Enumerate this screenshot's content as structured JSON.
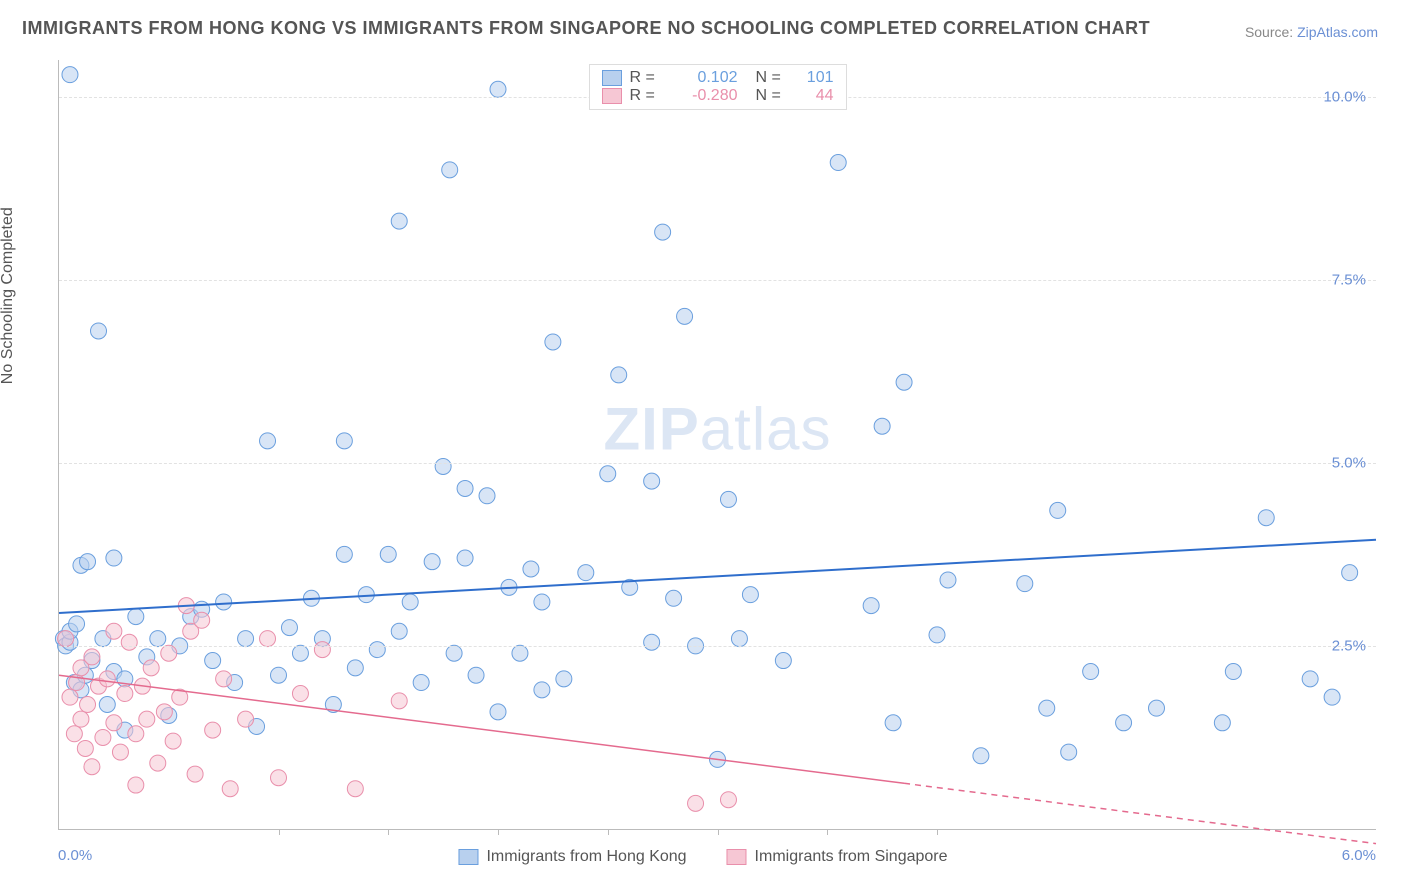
{
  "title": "IMMIGRANTS FROM HONG KONG VS IMMIGRANTS FROM SINGAPORE NO SCHOOLING COMPLETED CORRELATION CHART",
  "source_prefix": "Source: ",
  "source_name": "ZipAtlas.com",
  "ylabel": "No Schooling Completed",
  "watermark_bold": "ZIP",
  "watermark_rest": "atlas",
  "chart": {
    "type": "scatter",
    "xlim": [
      0.0,
      6.0
    ],
    "ylim": [
      0.0,
      10.5
    ],
    "x_ticks_labeled": [
      0.0,
      6.0
    ],
    "x_tick_label_format": "{v}%",
    "x_minor_ticks": [
      1.0,
      1.5,
      2.0,
      2.5,
      3.0,
      3.5,
      4.0
    ],
    "y_ticks": [
      2.5,
      5.0,
      7.5,
      10.0
    ],
    "y_tick_label_format": "{v}%",
    "grid_color": "#e2e2e2",
    "axis_color": "#bbbbbb",
    "background_color": "#ffffff",
    "tick_label_color": "#6a8fd4",
    "marker_radius": 8,
    "marker_opacity": 0.55,
    "series": [
      {
        "id": "hk",
        "label": "Immigrants from Hong Kong",
        "color_fill": "#b8d0ee",
        "color_stroke": "#6a9fde",
        "R": "0.102",
        "N": "101",
        "trend": {
          "y_at_xmin": 2.95,
          "y_at_xmax": 3.95,
          "stroke": "#2f6ecc",
          "width": 2,
          "dash_after_x": null
        },
        "points": [
          [
            0.02,
            2.6
          ],
          [
            0.03,
            2.5
          ],
          [
            0.05,
            2.55
          ],
          [
            0.05,
            2.7
          ],
          [
            0.05,
            10.3
          ],
          [
            0.07,
            2.0
          ],
          [
            0.08,
            2.8
          ],
          [
            0.1,
            1.9
          ],
          [
            0.1,
            3.6
          ],
          [
            0.12,
            2.1
          ],
          [
            0.13,
            3.65
          ],
          [
            0.15,
            2.3
          ],
          [
            0.18,
            6.8
          ],
          [
            0.2,
            2.6
          ],
          [
            0.22,
            1.7
          ],
          [
            0.25,
            2.15
          ],
          [
            0.25,
            3.7
          ],
          [
            0.3,
            1.35
          ],
          [
            0.3,
            2.05
          ],
          [
            0.35,
            2.9
          ],
          [
            0.4,
            2.35
          ],
          [
            0.45,
            2.6
          ],
          [
            0.5,
            1.55
          ],
          [
            0.55,
            2.5
          ],
          [
            0.6,
            2.9
          ],
          [
            0.65,
            3.0
          ],
          [
            0.7,
            2.3
          ],
          [
            0.75,
            3.1
          ],
          [
            0.8,
            2.0
          ],
          [
            0.85,
            2.6
          ],
          [
            0.9,
            1.4
          ],
          [
            0.95,
            5.3
          ],
          [
            1.0,
            2.1
          ],
          [
            1.05,
            2.75
          ],
          [
            1.1,
            2.4
          ],
          [
            1.15,
            3.15
          ],
          [
            1.2,
            2.6
          ],
          [
            1.25,
            1.7
          ],
          [
            1.3,
            3.75
          ],
          [
            1.3,
            5.3
          ],
          [
            1.35,
            2.2
          ],
          [
            1.4,
            3.2
          ],
          [
            1.45,
            2.45
          ],
          [
            1.5,
            3.75
          ],
          [
            1.55,
            2.7
          ],
          [
            1.55,
            8.3
          ],
          [
            1.6,
            3.1
          ],
          [
            1.65,
            2.0
          ],
          [
            1.7,
            3.65
          ],
          [
            1.75,
            4.95
          ],
          [
            1.78,
            9.0
          ],
          [
            1.8,
            2.4
          ],
          [
            1.85,
            3.7
          ],
          [
            1.85,
            4.65
          ],
          [
            1.9,
            2.1
          ],
          [
            1.95,
            4.55
          ],
          [
            2.0,
            1.6
          ],
          [
            2.0,
            10.1
          ],
          [
            2.05,
            3.3
          ],
          [
            2.1,
            2.4
          ],
          [
            2.15,
            3.55
          ],
          [
            2.2,
            1.9
          ],
          [
            2.2,
            3.1
          ],
          [
            2.25,
            6.65
          ],
          [
            2.3,
            2.05
          ],
          [
            2.4,
            3.5
          ],
          [
            2.5,
            4.85
          ],
          [
            2.55,
            6.2
          ],
          [
            2.6,
            3.3
          ],
          [
            2.7,
            2.55
          ],
          [
            2.7,
            4.75
          ],
          [
            2.75,
            8.15
          ],
          [
            2.8,
            3.15
          ],
          [
            2.85,
            7.0
          ],
          [
            2.9,
            2.5
          ],
          [
            3.0,
            0.95
          ],
          [
            3.05,
            4.5
          ],
          [
            3.1,
            2.6
          ],
          [
            3.15,
            3.2
          ],
          [
            3.3,
            2.3
          ],
          [
            3.55,
            9.1
          ],
          [
            3.7,
            3.05
          ],
          [
            3.75,
            5.5
          ],
          [
            3.8,
            1.45
          ],
          [
            3.85,
            6.1
          ],
          [
            4.0,
            2.65
          ],
          [
            4.05,
            3.4
          ],
          [
            4.2,
            1.0
          ],
          [
            4.4,
            3.35
          ],
          [
            4.5,
            1.65
          ],
          [
            4.55,
            4.35
          ],
          [
            4.6,
            1.05
          ],
          [
            4.7,
            2.15
          ],
          [
            4.85,
            1.45
          ],
          [
            5.0,
            1.65
          ],
          [
            5.3,
            1.45
          ],
          [
            5.35,
            2.15
          ],
          [
            5.5,
            4.25
          ],
          [
            5.7,
            2.05
          ],
          [
            5.8,
            1.8
          ],
          [
            5.88,
            3.5
          ]
        ]
      },
      {
        "id": "sg",
        "label": "Immigrants from Singapore",
        "color_fill": "#f6c7d4",
        "color_stroke": "#e98fab",
        "R": "-0.280",
        "N": "44",
        "trend": {
          "y_at_xmin": 2.1,
          "y_at_xmax": -0.2,
          "stroke": "#e46a8e",
          "width": 1.5,
          "dash_after_x": 3.85
        },
        "points": [
          [
            0.03,
            2.6
          ],
          [
            0.05,
            1.8
          ],
          [
            0.07,
            1.3
          ],
          [
            0.08,
            2.0
          ],
          [
            0.1,
            1.5
          ],
          [
            0.1,
            2.2
          ],
          [
            0.12,
            1.1
          ],
          [
            0.13,
            1.7
          ],
          [
            0.15,
            2.35
          ],
          [
            0.15,
            0.85
          ],
          [
            0.18,
            1.95
          ],
          [
            0.2,
            1.25
          ],
          [
            0.22,
            2.05
          ],
          [
            0.25,
            1.45
          ],
          [
            0.25,
            2.7
          ],
          [
            0.28,
            1.05
          ],
          [
            0.3,
            1.85
          ],
          [
            0.32,
            2.55
          ],
          [
            0.35,
            1.3
          ],
          [
            0.35,
            0.6
          ],
          [
            0.38,
            1.95
          ],
          [
            0.4,
            1.5
          ],
          [
            0.42,
            2.2
          ],
          [
            0.45,
            0.9
          ],
          [
            0.48,
            1.6
          ],
          [
            0.5,
            2.4
          ],
          [
            0.52,
            1.2
          ],
          [
            0.55,
            1.8
          ],
          [
            0.58,
            3.05
          ],
          [
            0.6,
            2.7
          ],
          [
            0.62,
            0.75
          ],
          [
            0.65,
            2.85
          ],
          [
            0.7,
            1.35
          ],
          [
            0.75,
            2.05
          ],
          [
            0.78,
            0.55
          ],
          [
            0.85,
            1.5
          ],
          [
            0.95,
            2.6
          ],
          [
            1.0,
            0.7
          ],
          [
            1.1,
            1.85
          ],
          [
            1.2,
            2.45
          ],
          [
            1.35,
            0.55
          ],
          [
            1.55,
            1.75
          ],
          [
            2.9,
            0.35
          ],
          [
            3.05,
            0.4
          ]
        ]
      }
    ]
  },
  "legend_top_labels": {
    "R": "R =",
    "N": "N ="
  },
  "xtick_origin_label": "0.0%",
  "xtick_max_label": "6.0%"
}
